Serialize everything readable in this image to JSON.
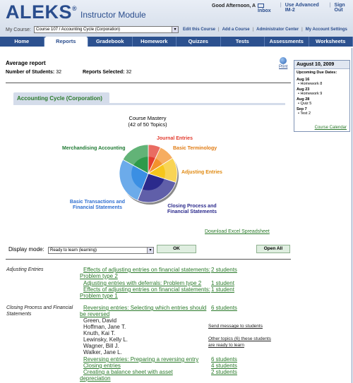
{
  "header": {
    "logo": "ALEKS",
    "logo_mark": "®",
    "module": "Instructor Module",
    "greeting": "Good Afternoon, A",
    "links": [
      "Inbox",
      "Use Advanced IM-2",
      "Sign Out"
    ],
    "my_course_label": "My Course:",
    "course_select": "Course 107 / Accounting Cycle (Corporation)",
    "course_links": [
      "Edit this Course",
      "Add a Course",
      "Administrator Center",
      "My Account Settings"
    ]
  },
  "nav": {
    "tabs": [
      "Home",
      "Reports",
      "Gradebook",
      "Homework",
      "Quizzes",
      "Tests",
      "Assessments",
      "Worksheets"
    ],
    "active": "Reports"
  },
  "report": {
    "title": "Average report",
    "num_students_label": "Number of Students:",
    "num_students": "32",
    "reports_selected_label": "Reports Selected:",
    "reports_selected": "32",
    "print_label": "Print"
  },
  "calendar": {
    "date": "August 10, 2009",
    "subtitle": "Upcoming Due Dates:",
    "entries": [
      {
        "date": "Aug 16",
        "item": "Homework 8"
      },
      {
        "date": "Aug 23",
        "item": "Homework 9"
      },
      {
        "date": "Aug 28",
        "item": "Quiz 5"
      },
      {
        "date": "Sep 7",
        "item": "Test 2"
      }
    ],
    "link": "Course Calendar"
  },
  "course_tab": "Accounting Cycle (Corporation)",
  "chart_data": {
    "type": "pie",
    "title": "Course Mastery",
    "subtitle": "(42 of 50 Topics)",
    "slices": [
      {
        "label": "Journal Entries",
        "value": 7,
        "color": "#e23b2e",
        "label_color": "#e23b2e"
      },
      {
        "label": "Basic Terminology",
        "value": 9,
        "color": "#f3922c",
        "label_color": "#e07b12"
      },
      {
        "label": "Adjusting Entries",
        "value": 14,
        "color": "#f6c61c",
        "label_color": "#e08a12"
      },
      {
        "label": "Closing Process and Financial Statements",
        "value": 26,
        "color": "#2b2a8c",
        "label_color": "#2b2a8c"
      },
      {
        "label": "Basic Transactions and Financial Statements",
        "value": 27,
        "color": "#3b8fe3",
        "label_color": "#2f6fd0"
      },
      {
        "label": "Merchandising Accounting",
        "value": 17,
        "color": "#2e9a4a",
        "label_color": "#1f7a33"
      }
    ]
  },
  "download_link": "Download Excel Spreadsheet",
  "display": {
    "label": "Display mode:",
    "select_value": "Ready to learn (learning)",
    "ok": "OK",
    "open_all": "Open All"
  },
  "topics": {
    "cat_adjusting": "Adjusting Entries",
    "cat_closing": "Closing Process and Financial Statements",
    "t1": "Effects of adjusting entries on financial statements:",
    "t1b": "Problem type 2",
    "t1c": "2 students",
    "t2": "Adjusting entries with deferrals: Problem type 2",
    "t2c": "1 student",
    "t3": "Effects of adjusting entries on financial statements:",
    "t3b": "Problem type 1",
    "t3c": "1 student",
    "t4": "Reversing entries: Selecting which entries should",
    "t4b": "be reversed",
    "t4c": "6 students",
    "students": [
      "Green, David",
      "Hoffman, Jane T.",
      "Knuth, Kai T.",
      "Lewinsky, Kelly L.",
      "Wagner, Bill J.",
      "Walker, Jane L."
    ],
    "send_message": "Send message to students",
    "other_topics": "Other topics (6) these students are ready to learn",
    "t5": "Reversing entries: Preparing a reversing entry",
    "t5c": "6 students",
    "t6": "Closing entries",
    "t6c": "4 students",
    "t7": "Creating a balance sheet with asset",
    "t7b": "depreciation",
    "t7c": "2 students"
  }
}
